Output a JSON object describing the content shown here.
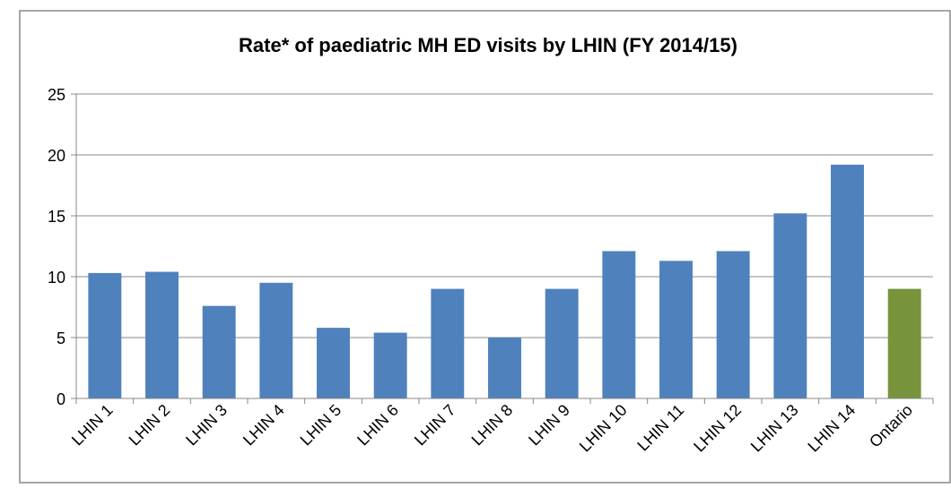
{
  "chart_data": {
    "type": "bar",
    "title": "Rate* of paediatric MH ED visits by LHIN (FY 2014/15)",
    "categories": [
      "LHIN 1",
      "LHIN 2",
      "LHIN 3",
      "LHIN 4",
      "LHIN 5",
      "LHIN 6",
      "LHIN 7",
      "LHIN 8",
      "LHIN 9",
      "LHIN 10",
      "LHIN 11",
      "LHIN 12",
      "LHIN 13",
      "LHIN 14",
      "Ontario"
    ],
    "values": [
      10.3,
      10.4,
      7.6,
      9.5,
      5.8,
      5.4,
      9.0,
      5.0,
      9.0,
      12.1,
      11.3,
      12.1,
      15.2,
      19.2,
      9.0
    ],
    "colors": [
      "#4f81bd",
      "#4f81bd",
      "#4f81bd",
      "#4f81bd",
      "#4f81bd",
      "#4f81bd",
      "#4f81bd",
      "#4f81bd",
      "#4f81bd",
      "#4f81bd",
      "#4f81bd",
      "#4f81bd",
      "#4f81bd",
      "#4f81bd",
      "#77933c"
    ],
    "ylim": [
      0,
      25
    ],
    "yticks": [
      0,
      5,
      10,
      15,
      20,
      25
    ],
    "grid": true
  }
}
